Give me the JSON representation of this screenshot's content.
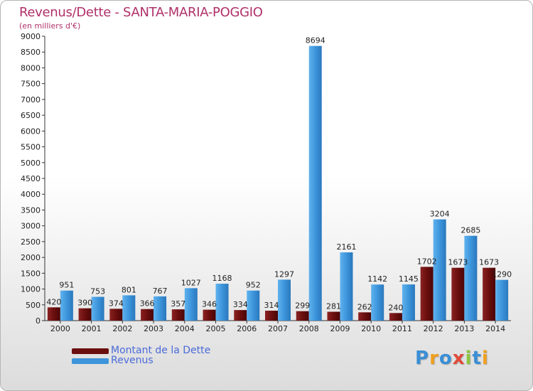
{
  "page": {
    "title": "Revenus/Dette - SANTA-MARIA-POGGIO",
    "subtitle": "(en milliers d'€)",
    "brand": "Proxiti"
  },
  "colors": {
    "dette": "#6b0e0e",
    "revenus": "#3d95db",
    "title": "#b0306a",
    "legend_text": "#4a6ad8"
  },
  "legend": [
    {
      "label": "Montant de la Dette",
      "color": "#6b0e0e"
    },
    {
      "label": "Revenus",
      "color": "#3d95db"
    }
  ],
  "chart_data": {
    "type": "bar",
    "title": "Revenus/Dette - SANTA-MARIA-POGGIO",
    "subtitle": "(en milliers d'€)",
    "categories": [
      "2000",
      "2001",
      "2002",
      "2003",
      "2004",
      "2005",
      "2006",
      "2007",
      "2008",
      "2009",
      "2010",
      "2011",
      "2012",
      "2013",
      "2014"
    ],
    "series": [
      {
        "name": "Montant de la Dette",
        "color": "#6b0e0e",
        "values": [
          420,
          390,
          374,
          366,
          357,
          346,
          334,
          314,
          299,
          281,
          262,
          240,
          1702,
          1673,
          1673
        ]
      },
      {
        "name": "Revenus",
        "color": "#3d95db",
        "values": [
          951,
          753,
          801,
          767,
          1027,
          1168,
          952,
          1297,
          8694,
          2161,
          1142,
          1145,
          3204,
          2685,
          1290
        ]
      }
    ],
    "ylim": [
      0,
      9000
    ],
    "yticks": [
      0,
      500,
      1000,
      1500,
      2000,
      2500,
      3000,
      3500,
      4000,
      4500,
      5000,
      5500,
      6000,
      6500,
      7000,
      7500,
      8000,
      8500,
      9000
    ],
    "grid": false,
    "legend_position": "bottom-left"
  }
}
